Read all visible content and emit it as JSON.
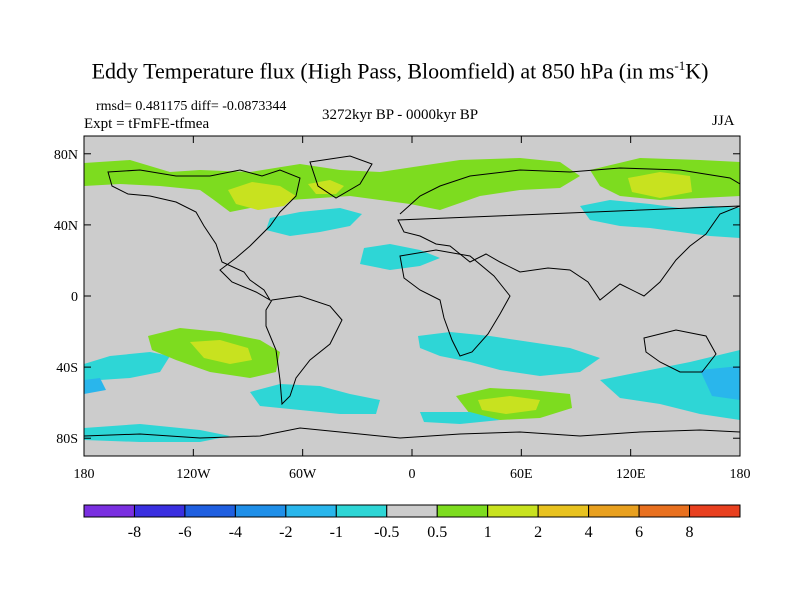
{
  "title": {
    "main": "Eddy Temperature flux (High Pass, Bloomfield) at 850 hPa (in ms",
    "superscript": "-1",
    "unit_end": "K)"
  },
  "stats": "rmsd= 0.481175 diff= -0.0873344",
  "experiment": "Expt = tFmFE-tfmea",
  "period": "3272kyr BP - 0000kyr BP",
  "season": "JJA",
  "axes": {
    "x_ticks": [
      "180",
      "120W",
      "60W",
      "0",
      "60E",
      "120E",
      "180"
    ],
    "y_ticks": [
      "80N",
      "40N",
      "0",
      "40S",
      "80S"
    ]
  },
  "colorbar": {
    "labels": [
      "-8",
      "-6",
      "-4",
      "-2",
      "-1",
      "-0.5",
      "0.5",
      "1",
      "2",
      "4",
      "6",
      "8"
    ],
    "colors": [
      "#7a2fe0",
      "#3a2fe0",
      "#1f5fe0",
      "#1f8fe8",
      "#29b6ec",
      "#2ed6d6",
      "#cccccc",
      "#7ddc1f",
      "#c8e21f",
      "#e8c21f",
      "#e8a01f",
      "#e8701f",
      "#e8401f"
    ]
  },
  "map_colors": {
    "background": "#cccccc",
    "cyan": "#2ed6d6",
    "light_blue": "#29b6ec",
    "green": "#7ddc1f",
    "yellow_green": "#c8e21f"
  }
}
